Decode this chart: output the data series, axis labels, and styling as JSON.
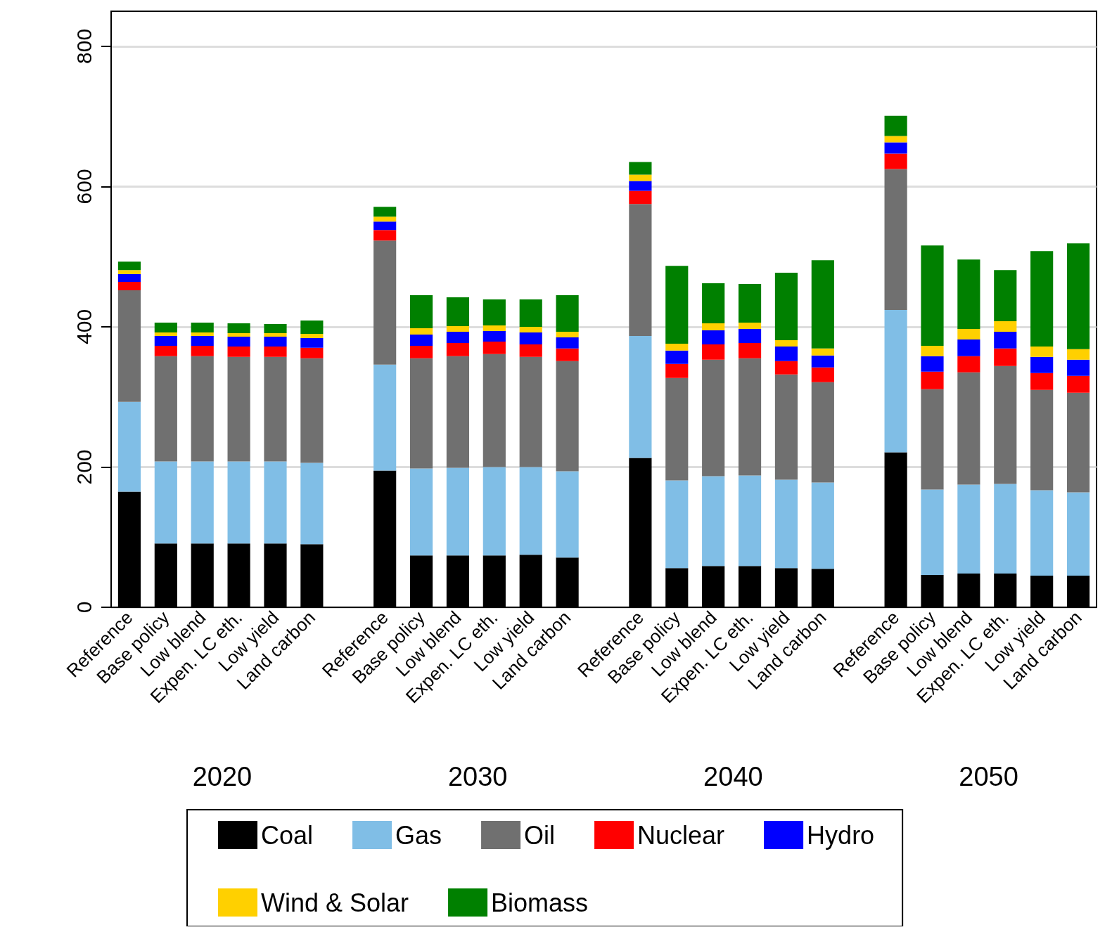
{
  "chart_data": {
    "type": "bar",
    "stacked": true,
    "categories": [
      "Reference",
      "Base policy",
      "Low blend",
      "Expen. LC eth.",
      "Low yield",
      "Land carbon",
      null,
      "Reference",
      "Base policy",
      "Low blend",
      "Expen. LC eth.",
      "Low yield",
      "Land carbon",
      null,
      "Reference",
      "Base policy",
      "Low blend",
      "Expen. LC eth.",
      "Low yield",
      "Land carbon",
      null,
      "Reference",
      "Base policy",
      "Low blend",
      "Expen. LC eth.",
      "Low yield",
      "Land carbon"
    ],
    "series": [
      {
        "name": "Coal",
        "color": "#000000",
        "values": [
          165,
          91,
          91,
          91,
          91,
          90,
          null,
          195,
          74,
          74,
          74,
          75,
          71,
          null,
          213,
          56,
          59,
          59,
          56,
          55,
          null,
          221,
          46,
          48,
          48,
          45,
          45
        ]
      },
      {
        "name": "Gas",
        "color": "#80bee6",
        "values": [
          128,
          117,
          117,
          117,
          117,
          116,
          null,
          151,
          124,
          125,
          126,
          125,
          123,
          null,
          174,
          125,
          128,
          129,
          126,
          123,
          null,
          203,
          122,
          127,
          128,
          122,
          119
        ]
      },
      {
        "name": "Oil",
        "color": "#707070",
        "values": [
          159,
          150,
          150,
          149,
          149,
          149,
          null,
          177,
          157,
          159,
          161,
          157,
          157,
          null,
          188,
          146,
          166,
          167,
          150,
          143,
          null,
          201,
          143,
          160,
          168,
          143,
          142
        ]
      },
      {
        "name": "Nuclear",
        "color": "#ff0000",
        "values": [
          12,
          15,
          15,
          15,
          15,
          15,
          null,
          15,
          18,
          19,
          18,
          18,
          18,
          null,
          19,
          20,
          22,
          22,
          19,
          21,
          null,
          22,
          25,
          23,
          25,
          24,
          24
        ]
      },
      {
        "name": "Hydro",
        "color": "#0000ff",
        "values": [
          11,
          14,
          14,
          14,
          14,
          14,
          null,
          12,
          16,
          16,
          15,
          17,
          16,
          null,
          14,
          19,
          20,
          20,
          21,
          17,
          null,
          16,
          22,
          24,
          24,
          23,
          23
        ]
      },
      {
        "name": "Wind & Solar",
        "color": "#ffd000",
        "values": [
          6,
          5,
          5,
          5,
          5,
          6,
          null,
          7,
          9,
          8,
          8,
          8,
          8,
          null,
          9,
          10,
          10,
          9,
          9,
          10,
          null,
          9,
          15,
          15,
          15,
          15,
          15
        ]
      },
      {
        "name": "Biomass",
        "color": "#008000",
        "values": [
          12,
          14,
          14,
          14,
          13,
          19,
          null,
          14,
          47,
          41,
          37,
          39,
          52,
          null,
          18,
          111,
          57,
          55,
          96,
          126,
          null,
          29,
          143,
          99,
          73,
          136,
          151
        ]
      }
    ],
    "ylim": [
      0,
      850
    ],
    "yticks": [
      0,
      200,
      400,
      600,
      800
    ],
    "grid": "y",
    "legend": "bottom",
    "annotations": [
      "2020",
      "2030",
      "2040",
      "2050"
    ]
  }
}
